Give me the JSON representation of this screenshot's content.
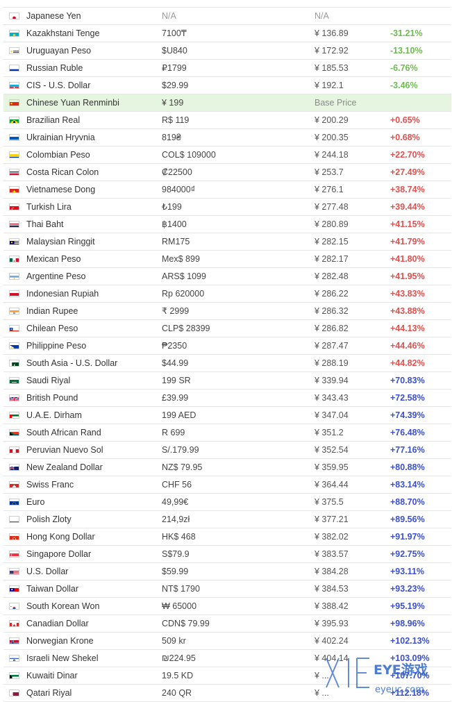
{
  "table": {
    "rows": [
      {
        "flag": "jp",
        "name": "Japanese Yen",
        "local": "N/A",
        "cny": "N/A",
        "diff": "",
        "tone": "na"
      },
      {
        "flag": "kz",
        "name": "Kazakhstani Tenge",
        "local": "7100₸",
        "cny": "¥ 136.89",
        "diff": "-31.21%",
        "tone": "neg"
      },
      {
        "flag": "uy",
        "name": "Uruguayan Peso",
        "local": "$U840",
        "cny": "¥ 172.92",
        "diff": "-13.10%",
        "tone": "neg"
      },
      {
        "flag": "ru",
        "name": "Russian Ruble",
        "local": "₽1799",
        "cny": "¥ 185.53",
        "diff": "-6.76%",
        "tone": "neg"
      },
      {
        "flag": "az",
        "name": "CIS - U.S. Dollar",
        "local": "$29.99",
        "cny": "¥ 192.1",
        "diff": "-3.46%",
        "tone": "neg"
      },
      {
        "flag": "cn",
        "name": "Chinese Yuan Renminbi",
        "local": "¥ 199",
        "cny": "Base Price",
        "diff": "",
        "tone": "base"
      },
      {
        "flag": "br",
        "name": "Brazilian Real",
        "local": "R$ 119",
        "cny": "¥ 200.29",
        "diff": "+0.65%",
        "tone": "pos-small"
      },
      {
        "flag": "ua",
        "name": "Ukrainian Hryvnia",
        "local": "819₴",
        "cny": "¥ 200.35",
        "diff": "+0.68%",
        "tone": "pos-small"
      },
      {
        "flag": "co",
        "name": "Colombian Peso",
        "local": "COL$ 109000",
        "cny": "¥ 244.18",
        "diff": "+22.70%",
        "tone": "pos-small"
      },
      {
        "flag": "cr",
        "name": "Costa Rican Colon",
        "local": "₡22500",
        "cny": "¥ 253.7",
        "diff": "+27.49%",
        "tone": "pos-small"
      },
      {
        "flag": "vn",
        "name": "Vietnamese Dong",
        "local": "984000₫",
        "cny": "¥ 276.1",
        "diff": "+38.74%",
        "tone": "pos-small"
      },
      {
        "flag": "tr",
        "name": "Turkish Lira",
        "local": "₺199",
        "cny": "¥ 277.48",
        "diff": "+39.44%",
        "tone": "pos-small"
      },
      {
        "flag": "th",
        "name": "Thai Baht",
        "local": "฿1400",
        "cny": "¥ 280.89",
        "diff": "+41.15%",
        "tone": "pos-small"
      },
      {
        "flag": "my",
        "name": "Malaysian Ringgit",
        "local": "RM175",
        "cny": "¥ 282.15",
        "diff": "+41.79%",
        "tone": "pos-small"
      },
      {
        "flag": "mx",
        "name": "Mexican Peso",
        "local": "Mex$ 899",
        "cny": "¥ 282.17",
        "diff": "+41.80%",
        "tone": "pos-small"
      },
      {
        "flag": "ar",
        "name": "Argentine Peso",
        "local": "ARS$ 1099",
        "cny": "¥ 282.48",
        "diff": "+41.95%",
        "tone": "pos-small"
      },
      {
        "flag": "id",
        "name": "Indonesian Rupiah",
        "local": "Rp 620000",
        "cny": "¥ 286.22",
        "diff": "+43.83%",
        "tone": "pos-small"
      },
      {
        "flag": "in",
        "name": "Indian Rupee",
        "local": "₹ 2999",
        "cny": "¥ 286.32",
        "diff": "+43.88%",
        "tone": "pos-small"
      },
      {
        "flag": "cl",
        "name": "Chilean Peso",
        "local": "CLP$ 28399",
        "cny": "¥ 286.82",
        "diff": "+44.13%",
        "tone": "pos-small"
      },
      {
        "flag": "ph",
        "name": "Philippine Peso",
        "local": "₱2350",
        "cny": "¥ 287.47",
        "diff": "+44.46%",
        "tone": "pos-small"
      },
      {
        "flag": "pk",
        "name": "South Asia - U.S. Dollar",
        "local": "$44.99",
        "cny": "¥ 288.19",
        "diff": "+44.82%",
        "tone": "pos-small"
      },
      {
        "flag": "sa",
        "name": "Saudi Riyal",
        "local": "199 SR",
        "cny": "¥ 339.94",
        "diff": "+70.83%",
        "tone": "pos-big"
      },
      {
        "flag": "gb",
        "name": "British Pound",
        "local": "£39.99",
        "cny": "¥ 343.43",
        "diff": "+72.58%",
        "tone": "pos-big"
      },
      {
        "flag": "ae",
        "name": "U.A.E. Dirham",
        "local": "199 AED",
        "cny": "¥ 347.04",
        "diff": "+74.39%",
        "tone": "pos-big"
      },
      {
        "flag": "za",
        "name": "South African Rand",
        "local": "R 699",
        "cny": "¥ 351.2",
        "diff": "+76.48%",
        "tone": "pos-big"
      },
      {
        "flag": "pe",
        "name": "Peruvian Nuevo Sol",
        "local": "S/.179.99",
        "cny": "¥ 352.54",
        "diff": "+77.16%",
        "tone": "pos-big"
      },
      {
        "flag": "nz",
        "name": "New Zealand Dollar",
        "local": "NZ$ 79.95",
        "cny": "¥ 359.95",
        "diff": "+80.88%",
        "tone": "pos-big"
      },
      {
        "flag": "ch",
        "name": "Swiss Franc",
        "local": "CHF 56",
        "cny": "¥ 364.44",
        "diff": "+83.14%",
        "tone": "pos-big"
      },
      {
        "flag": "eu",
        "name": "Euro",
        "local": "49,99€",
        "cny": "¥ 375.5",
        "diff": "+88.70%",
        "tone": "pos-big"
      },
      {
        "flag": "pl",
        "name": "Polish Zloty",
        "local": "214,9zł",
        "cny": "¥ 377.21",
        "diff": "+89.56%",
        "tone": "pos-big"
      },
      {
        "flag": "hk",
        "name": "Hong Kong Dollar",
        "local": "HK$ 468",
        "cny": "¥ 382.02",
        "diff": "+91.97%",
        "tone": "pos-big"
      },
      {
        "flag": "sg",
        "name": "Singapore Dollar",
        "local": "S$79.9",
        "cny": "¥ 383.57",
        "diff": "+92.75%",
        "tone": "pos-big"
      },
      {
        "flag": "us",
        "name": "U.S. Dollar",
        "local": "$59.99",
        "cny": "¥ 384.28",
        "diff": "+93.11%",
        "tone": "pos-big"
      },
      {
        "flag": "tw",
        "name": "Taiwan Dollar",
        "local": "NT$ 1790",
        "cny": "¥ 384.53",
        "diff": "+93.23%",
        "tone": "pos-big"
      },
      {
        "flag": "kr",
        "name": "South Korean Won",
        "local": "₩ 65000",
        "cny": "¥ 388.42",
        "diff": "+95.19%",
        "tone": "pos-big"
      },
      {
        "flag": "ca",
        "name": "Canadian Dollar",
        "local": "CDN$ 79.99",
        "cny": "¥ 395.93",
        "diff": "+98.96%",
        "tone": "pos-big"
      },
      {
        "flag": "no",
        "name": "Norwegian Krone",
        "local": "509 kr",
        "cny": "¥ 402.24",
        "diff": "+102.13%",
        "tone": "pos-big"
      },
      {
        "flag": "il",
        "name": "Israeli New Shekel",
        "local": "₪224.95",
        "cny": "¥ 404.14",
        "diff": "+103.09%",
        "tone": "pos-big"
      },
      {
        "flag": "kw",
        "name": "Kuwaiti Dinar",
        "local": "19.5 KD",
        "cny": "¥ ...",
        "diff": "+107.70%",
        "tone": "pos-big"
      },
      {
        "flag": "qa",
        "name": "Qatari Riyal",
        "local": "240 QR",
        "cny": "¥ ...",
        "diff": "+112.18%",
        "tone": "pos-big"
      }
    ]
  },
  "watermark": {
    "brand": "EYE游戏",
    "site": "eyeuc.com"
  },
  "colors": {
    "negative": "#6cbb4f",
    "positive_small": "#e0504d",
    "positive_big": "#3a4fd3",
    "base_row": "#e6f5df"
  }
}
